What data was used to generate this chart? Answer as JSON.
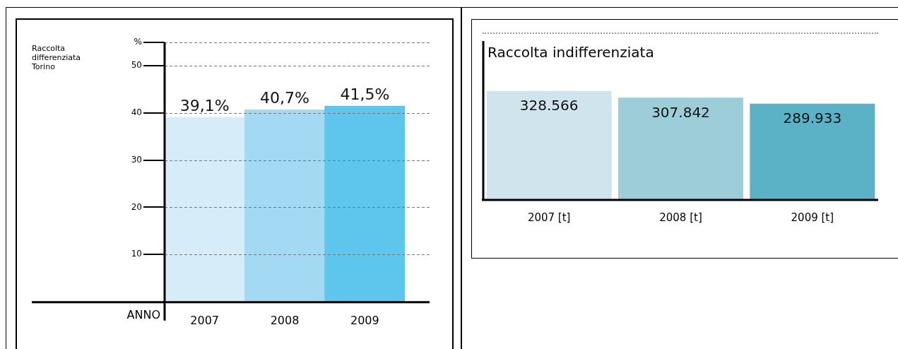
{
  "chart_data": [
    {
      "type": "bar",
      "ylabel": "Raccolta differenziata Torino",
      "xlabel": "ANNO",
      "categories": [
        "2007",
        "2008",
        "2009"
      ],
      "values": [
        39.1,
        40.7,
        41.5
      ],
      "colors": [
        "#d6ecf9",
        "#a3d9f3",
        "#5ec5ec"
      ],
      "value_labels": [
        "39,1%",
        "40,7%",
        "41,5%"
      ],
      "ylim": [
        0,
        55
      ],
      "yticks": [
        10,
        20,
        30,
        40,
        50,
        {
          "value": 55,
          "label": "%"
        }
      ],
      "grid": "y"
    },
    {
      "type": "bar",
      "title": "Raccolta indifferenziata",
      "categories": [
        "2007 [t]",
        "2008 [t]",
        "2009 [t]"
      ],
      "values": [
        328566,
        307842,
        289933
      ],
      "colors": [
        "#cfe4ec",
        "#9ccdd9",
        "#5bb1c6"
      ],
      "value_labels": [
        "328.566",
        "307.842",
        "289.933"
      ],
      "ylim": [
        0,
        480000
      ],
      "tick_labels": "x"
    }
  ]
}
